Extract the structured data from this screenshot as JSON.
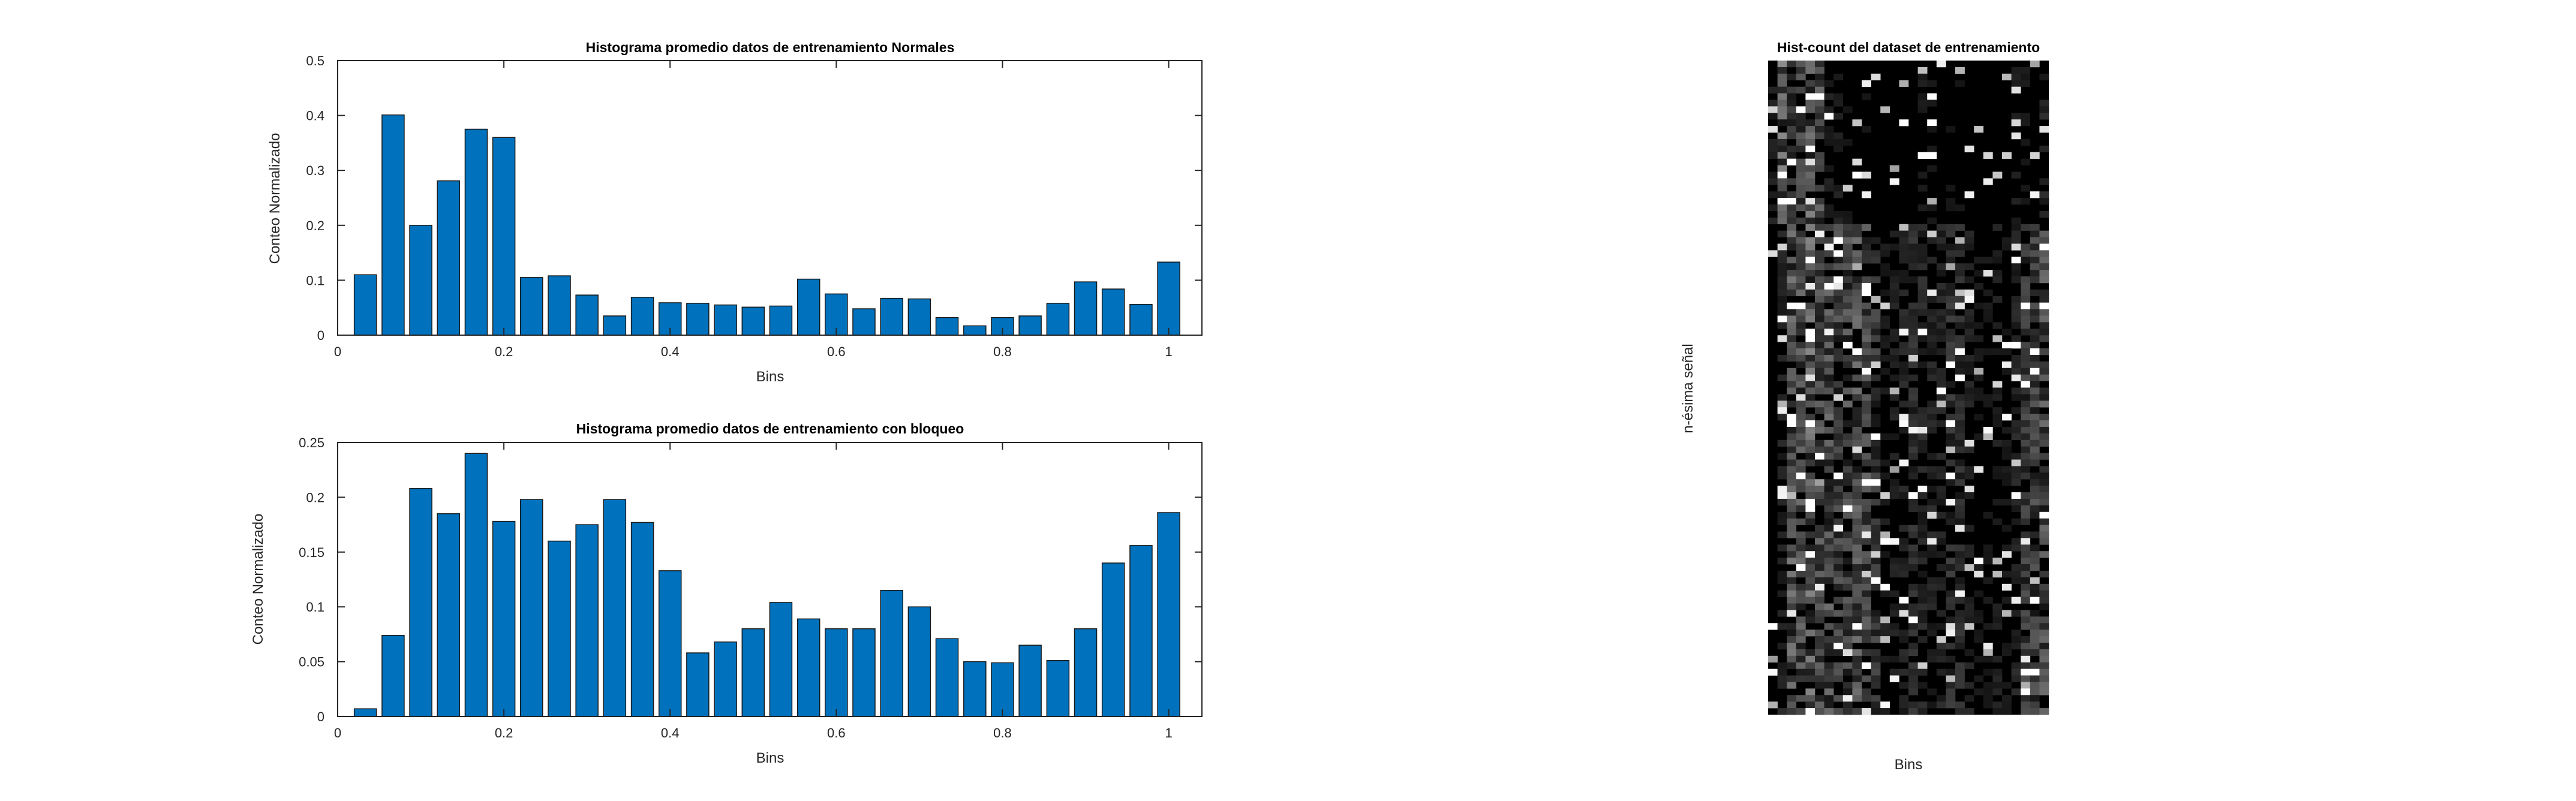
{
  "chart_data": [
    {
      "type": "bar",
      "title": "Histograma promedio datos de entrenamiento Normales",
      "xlabel": "Bins",
      "ylabel": "Conteo Normalizado",
      "x": [
        0.0333,
        0.0667,
        0.1,
        0.1333,
        0.1667,
        0.2,
        0.2333,
        0.2667,
        0.3,
        0.3333,
        0.3667,
        0.4,
        0.4333,
        0.4667,
        0.5,
        0.5333,
        0.5667,
        0.6,
        0.6333,
        0.6667,
        0.7,
        0.7333,
        0.7667,
        0.8,
        0.8333,
        0.8667,
        0.9,
        0.9333,
        0.9667,
        1.0
      ],
      "values": [
        0.11,
        0.401,
        0.2,
        0.281,
        0.375,
        0.36,
        0.105,
        0.108,
        0.073,
        0.035,
        0.069,
        0.059,
        0.058,
        0.055,
        0.051,
        0.053,
        0.102,
        0.075,
        0.048,
        0.067,
        0.066,
        0.032,
        0.017,
        0.032,
        0.035,
        0.058,
        0.097,
        0.084,
        0.056,
        0.133
      ],
      "xlim": [
        0,
        1.04
      ],
      "ylim": [
        0,
        0.5
      ],
      "xticks": [
        "0",
        "0.2",
        "0.4",
        "0.6",
        "0.8",
        "1"
      ],
      "yticks": [
        "0",
        "0.1",
        "0.2",
        "0.3",
        "0.4",
        "0.5"
      ],
      "grid": false,
      "color": "#0072BD"
    },
    {
      "type": "bar",
      "title": "Histograma promedio datos de entrenamiento con bloqueo",
      "xlabel": "Bins",
      "ylabel": "Conteo Normalizado",
      "x": [
        0.0333,
        0.0667,
        0.1,
        0.1333,
        0.1667,
        0.2,
        0.2333,
        0.2667,
        0.3,
        0.3333,
        0.3667,
        0.4,
        0.4333,
        0.4667,
        0.5,
        0.5333,
        0.5667,
        0.6,
        0.6333,
        0.6667,
        0.7,
        0.7333,
        0.7667,
        0.8,
        0.8333,
        0.8667,
        0.9,
        0.9333,
        0.9667,
        1.0
      ],
      "values": [
        0.007,
        0.074,
        0.208,
        0.185,
        0.24,
        0.178,
        0.198,
        0.16,
        0.175,
        0.198,
        0.177,
        0.133,
        0.058,
        0.068,
        0.08,
        0.104,
        0.089,
        0.08,
        0.08,
        0.115,
        0.1,
        0.071,
        0.05,
        0.049,
        0.065,
        0.051,
        0.08,
        0.14,
        0.156,
        0.186
      ],
      "xlim": [
        0,
        1.04
      ],
      "ylim": [
        0,
        0.25
      ],
      "xticks": [
        "0",
        "0.2",
        "0.4",
        "0.6",
        "0.8",
        "1"
      ],
      "yticks": [
        "0",
        "0.05",
        "0.1",
        "0.15",
        "0.2",
        "0.25"
      ],
      "grid": false,
      "color": "#0072BD"
    },
    {
      "type": "heatmap",
      "title": "Hist-count del dataset de entrenamiento",
      "xlabel": "Bins",
      "ylabel": "n-ésima señal",
      "colormap": "gray"
    }
  ]
}
